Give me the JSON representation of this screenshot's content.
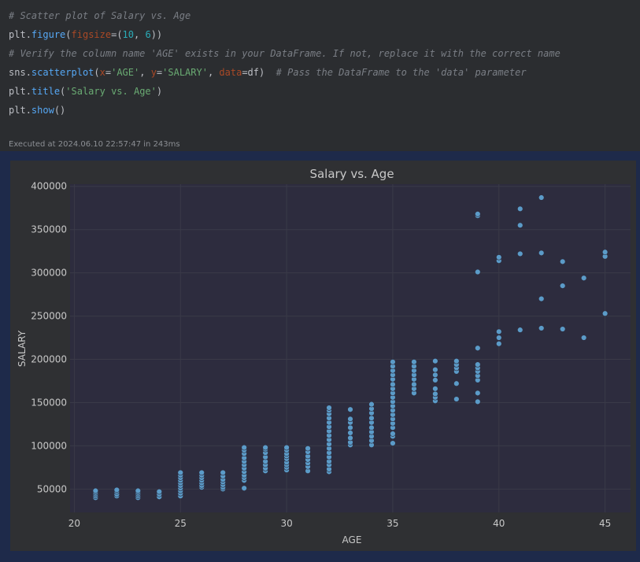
{
  "code": {
    "line1": "# Scatter plot of Salary vs. Age",
    "line2_obj": "plt",
    "line2_fn": "figure",
    "line2_kw": "figsize",
    "line2_args": "=(",
    "line2_n1": "10",
    "line2_sep": ", ",
    "line2_n2": "6",
    "line2_end": "))",
    "line3": "# Verify the column name 'AGE' exists in your DataFrame. If not, replace it with the correct name",
    "line4_obj": "sns",
    "line4_fn": "scatterplot",
    "line4_x": "x",
    "line4_xval": "'AGE'",
    "line4_y": "y",
    "line4_yval": "'SALARY'",
    "line4_d": "data",
    "line4_dval": "=df)",
    "line4_comment": "  # Pass the DataFrame to the 'data' parameter",
    "line5_obj": "plt",
    "line5_fn": "title",
    "line5_arg": "'Salary vs. Age'",
    "line6_obj": "plt",
    "line6_fn": "show",
    "line6_end": "()"
  },
  "status": "Executed at 2024.06.10 22:57:47 in 243ms",
  "colors": {
    "point": "#5b9bc8",
    "axes_bg": "#2d2c3e",
    "figure_bg": "#2f3033",
    "grid": "#3b3b4a",
    "text": "#c8c8c8"
  },
  "chart_data": {
    "type": "scatter",
    "title": "Salary vs. Age",
    "xlabel": "AGE",
    "ylabel": "SALARY",
    "xlim": [
      19.8,
      46.2
    ],
    "ylim": [
      23000,
      402500
    ],
    "xticks": [
      20,
      25,
      30,
      35,
      40,
      45
    ],
    "yticks": [
      50000,
      100000,
      150000,
      200000,
      250000,
      300000,
      350000,
      400000
    ],
    "grid": true,
    "points": [
      [
        21,
        40000
      ],
      [
        21,
        42000
      ],
      [
        21,
        44000
      ],
      [
        21,
        46000
      ],
      [
        21,
        48000
      ],
      [
        22,
        42000
      ],
      [
        22,
        44000
      ],
      [
        22,
        47000
      ],
      [
        22,
        49000
      ],
      [
        23,
        40000
      ],
      [
        23,
        42000
      ],
      [
        23,
        44000
      ],
      [
        23,
        46000
      ],
      [
        23,
        48000
      ],
      [
        24,
        41000
      ],
      [
        24,
        44000
      ],
      [
        24,
        47000
      ],
      [
        25,
        42000
      ],
      [
        25,
        45000
      ],
      [
        25,
        48000
      ],
      [
        25,
        51000
      ],
      [
        25,
        54000
      ],
      [
        25,
        57000
      ],
      [
        25,
        60000
      ],
      [
        25,
        63000
      ],
      [
        25,
        66000
      ],
      [
        25,
        69000
      ],
      [
        26,
        52000
      ],
      [
        26,
        54000
      ],
      [
        26,
        57000
      ],
      [
        26,
        60000
      ],
      [
        26,
        63000
      ],
      [
        26,
        66000
      ],
      [
        26,
        69000
      ],
      [
        27,
        50000
      ],
      [
        27,
        52000
      ],
      [
        27,
        55000
      ],
      [
        27,
        58000
      ],
      [
        27,
        61000
      ],
      [
        27,
        65000
      ],
      [
        27,
        69000
      ],
      [
        28,
        51000
      ],
      [
        28,
        60000
      ],
      [
        28,
        63000
      ],
      [
        28,
        66000
      ],
      [
        28,
        70000
      ],
      [
        28,
        74000
      ],
      [
        28,
        78000
      ],
      [
        28,
        82000
      ],
      [
        28,
        86000
      ],
      [
        28,
        91000
      ],
      [
        28,
        95000
      ],
      [
        28,
        98000
      ],
      [
        29,
        71000
      ],
      [
        29,
        74000
      ],
      [
        29,
        78000
      ],
      [
        29,
        82000
      ],
      [
        29,
        87000
      ],
      [
        29,
        92000
      ],
      [
        29,
        96000
      ],
      [
        29,
        98000
      ],
      [
        30,
        72000
      ],
      [
        30,
        75000
      ],
      [
        30,
        78000
      ],
      [
        30,
        81000
      ],
      [
        30,
        85000
      ],
      [
        30,
        88000
      ],
      [
        30,
        91000
      ],
      [
        30,
        95000
      ],
      [
        30,
        98000
      ],
      [
        31,
        71000
      ],
      [
        31,
        76000
      ],
      [
        31,
        80000
      ],
      [
        31,
        84000
      ],
      [
        31,
        88000
      ],
      [
        31,
        93000
      ],
      [
        31,
        97000
      ],
      [
        32,
        70000
      ],
      [
        32,
        73000
      ],
      [
        32,
        78000
      ],
      [
        32,
        82000
      ],
      [
        32,
        87000
      ],
      [
        32,
        92000
      ],
      [
        32,
        97000
      ],
      [
        32,
        102000
      ],
      [
        32,
        107000
      ],
      [
        32,
        112000
      ],
      [
        32,
        117000
      ],
      [
        32,
        122000
      ],
      [
        32,
        127000
      ],
      [
        32,
        132000
      ],
      [
        32,
        137000
      ],
      [
        32,
        141000
      ],
      [
        32,
        144000
      ],
      [
        33,
        101000
      ],
      [
        33,
        104000
      ],
      [
        33,
        109000
      ],
      [
        33,
        115000
      ],
      [
        33,
        121000
      ],
      [
        33,
        127000
      ],
      [
        33,
        131000
      ],
      [
        33,
        142000
      ],
      [
        34,
        101000
      ],
      [
        34,
        106000
      ],
      [
        34,
        111000
      ],
      [
        34,
        116000
      ],
      [
        34,
        121000
      ],
      [
        34,
        127000
      ],
      [
        34,
        132000
      ],
      [
        34,
        138000
      ],
      [
        34,
        143000
      ],
      [
        34,
        148000
      ],
      [
        35,
        103000
      ],
      [
        35,
        111000
      ],
      [
        35,
        114000
      ],
      [
        35,
        121000
      ],
      [
        35,
        126000
      ],
      [
        35,
        131000
      ],
      [
        35,
        136000
      ],
      [
        35,
        141000
      ],
      [
        35,
        146000
      ],
      [
        35,
        151000
      ],
      [
        35,
        156000
      ],
      [
        35,
        161000
      ],
      [
        35,
        166000
      ],
      [
        35,
        171000
      ],
      [
        35,
        177000
      ],
      [
        35,
        182000
      ],
      [
        35,
        187000
      ],
      [
        35,
        192000
      ],
      [
        35,
        197000
      ],
      [
        36,
        161000
      ],
      [
        36,
        166000
      ],
      [
        36,
        171000
      ],
      [
        36,
        177000
      ],
      [
        36,
        182000
      ],
      [
        36,
        187000
      ],
      [
        36,
        192000
      ],
      [
        36,
        197000
      ],
      [
        37,
        152000
      ],
      [
        37,
        156000
      ],
      [
        37,
        160000
      ],
      [
        37,
        166000
      ],
      [
        37,
        176000
      ],
      [
        37,
        182000
      ],
      [
        37,
        188000
      ],
      [
        37,
        198000
      ],
      [
        38,
        154000
      ],
      [
        38,
        172000
      ],
      [
        38,
        186000
      ],
      [
        38,
        190000
      ],
      [
        38,
        194000
      ],
      [
        38,
        198000
      ],
      [
        39,
        151000
      ],
      [
        39,
        161000
      ],
      [
        39,
        176000
      ],
      [
        39,
        181000
      ],
      [
        39,
        186000
      ],
      [
        39,
        190000
      ],
      [
        39,
        194000
      ],
      [
        39,
        213000
      ],
      [
        39,
        301000
      ],
      [
        39,
        366000
      ],
      [
        39,
        368000
      ],
      [
        40,
        218000
      ],
      [
        40,
        225000
      ],
      [
        40,
        232000
      ],
      [
        40,
        314000
      ],
      [
        40,
        318000
      ],
      [
        41,
        234000
      ],
      [
        41,
        322000
      ],
      [
        41,
        355000
      ],
      [
        41,
        374000
      ],
      [
        42,
        236000
      ],
      [
        42,
        270000
      ],
      [
        42,
        323000
      ],
      [
        42,
        387000
      ],
      [
        43,
        235000
      ],
      [
        43,
        285000
      ],
      [
        43,
        313000
      ],
      [
        44,
        225000
      ],
      [
        44,
        294000
      ],
      [
        45,
        253000
      ],
      [
        45,
        319000
      ],
      [
        45,
        324000
      ]
    ]
  }
}
